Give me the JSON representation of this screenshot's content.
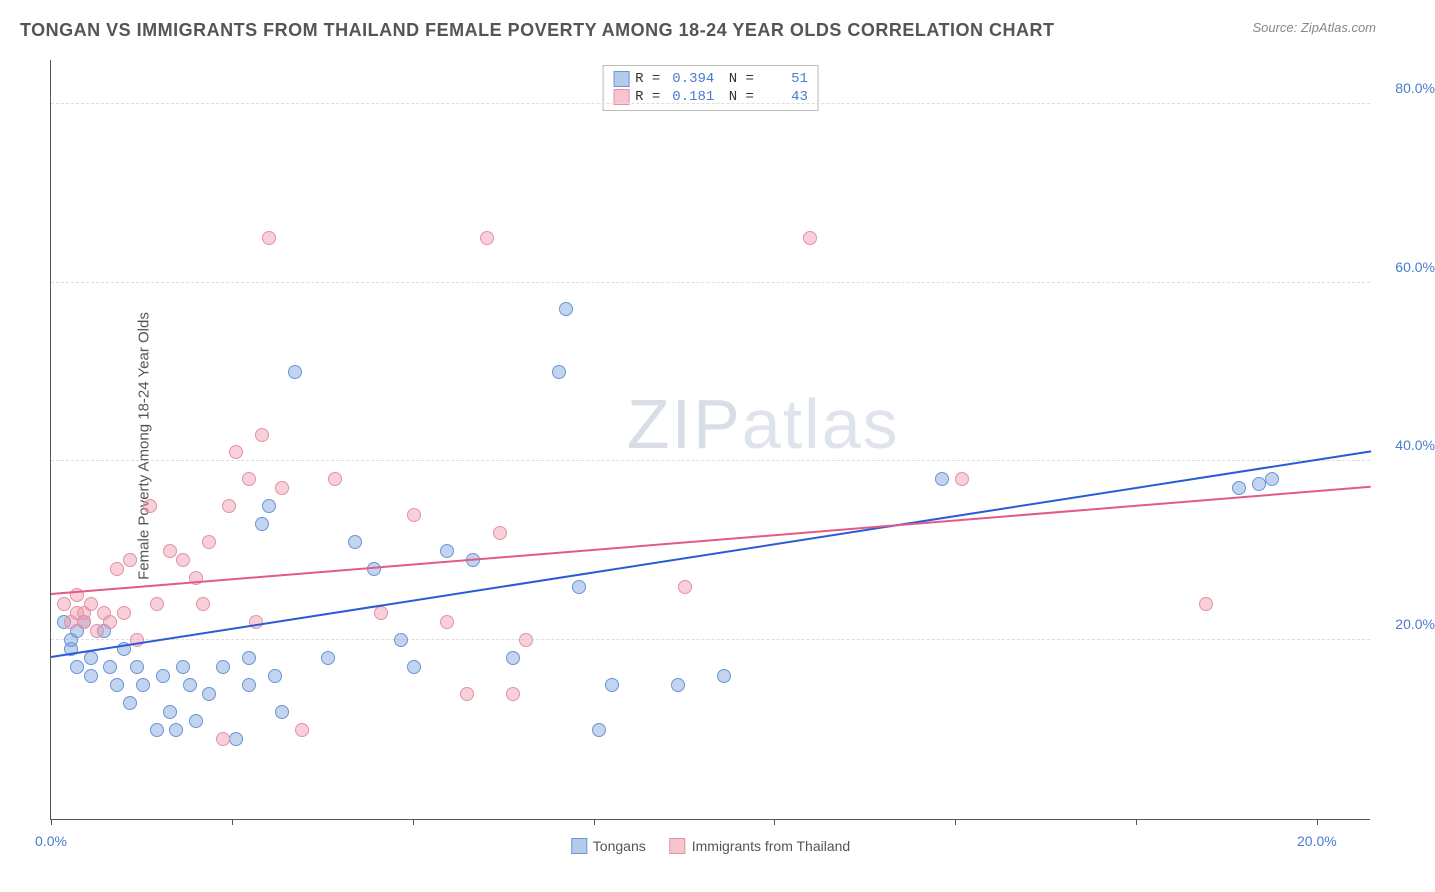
{
  "title": "TONGAN VS IMMIGRANTS FROM THAILAND FEMALE POVERTY AMONG 18-24 YEAR OLDS CORRELATION CHART",
  "source": "Source: ZipAtlas.com",
  "ylabel": "Female Poverty Among 18-24 Year Olds",
  "watermark_a": "ZIP",
  "watermark_b": "atlas",
  "chart": {
    "type": "scatter",
    "xlim": [
      0,
      20
    ],
    "ylim": [
      0,
      85
    ],
    "xticks": [
      0,
      2.74,
      5.48,
      8.22,
      10.96,
      13.7,
      16.44,
      19.18
    ],
    "xtick_labels": {
      "0": "0.0%",
      "19.18": "20.0%"
    },
    "yticks": [
      20,
      40,
      60,
      80
    ],
    "ytick_labels": [
      "20.0%",
      "40.0%",
      "60.0%",
      "80.0%"
    ],
    "grid_color": "#dddddd",
    "axis_color": "#555555",
    "background": "#ffffff",
    "series": [
      {
        "name": "Tongans",
        "fill": "rgba(120,160,220,0.45)",
        "stroke": "#6b95d4",
        "trend_color": "#2a5bd7",
        "R": "0.394",
        "N": "51",
        "trend": {
          "x1": 0,
          "y1": 18,
          "x2": 20,
          "y2": 41
        },
        "points": [
          [
            0.2,
            22
          ],
          [
            0.3,
            19
          ],
          [
            0.3,
            20
          ],
          [
            0.4,
            21
          ],
          [
            0.4,
            17
          ],
          [
            0.5,
            22
          ],
          [
            0.6,
            18
          ],
          [
            0.6,
            16
          ],
          [
            0.8,
            21
          ],
          [
            0.9,
            17
          ],
          [
            1.0,
            15
          ],
          [
            1.1,
            19
          ],
          [
            1.2,
            13
          ],
          [
            1.3,
            17
          ],
          [
            1.4,
            15
          ],
          [
            1.6,
            10
          ],
          [
            1.7,
            16
          ],
          [
            1.8,
            12
          ],
          [
            1.9,
            10
          ],
          [
            2.0,
            17
          ],
          [
            2.1,
            15
          ],
          [
            2.2,
            11
          ],
          [
            2.4,
            14
          ],
          [
            2.6,
            17
          ],
          [
            2.8,
            9
          ],
          [
            3.0,
            15
          ],
          [
            3.0,
            18
          ],
          [
            3.2,
            33
          ],
          [
            3.3,
            35
          ],
          [
            3.4,
            16
          ],
          [
            3.5,
            12
          ],
          [
            3.7,
            50
          ],
          [
            4.2,
            18
          ],
          [
            4.6,
            31
          ],
          [
            4.9,
            28
          ],
          [
            5.3,
            20
          ],
          [
            5.5,
            17
          ],
          [
            6.0,
            30
          ],
          [
            6.4,
            29
          ],
          [
            7.0,
            18
          ],
          [
            7.7,
            50
          ],
          [
            7.8,
            57
          ],
          [
            8.0,
            26
          ],
          [
            8.3,
            10
          ],
          [
            8.5,
            15
          ],
          [
            9.5,
            15
          ],
          [
            10.2,
            16
          ],
          [
            13.5,
            38
          ],
          [
            18.0,
            37
          ],
          [
            18.3,
            37.5
          ],
          [
            18.5,
            38
          ]
        ]
      },
      {
        "name": "Immigrants from Thailand",
        "fill": "rgba(240,150,170,0.45)",
        "stroke": "#e690a6",
        "trend_color": "#e05a8a",
        "R": "0.181",
        "N": "43",
        "trend": {
          "x1": 0,
          "y1": 25,
          "x2": 20,
          "y2": 37
        },
        "points": [
          [
            0.2,
            24
          ],
          [
            0.3,
            22
          ],
          [
            0.4,
            23
          ],
          [
            0.4,
            25
          ],
          [
            0.5,
            23
          ],
          [
            0.5,
            22
          ],
          [
            0.6,
            24
          ],
          [
            0.7,
            21
          ],
          [
            0.8,
            23
          ],
          [
            0.9,
            22
          ],
          [
            1.0,
            28
          ],
          [
            1.1,
            23
          ],
          [
            1.2,
            29
          ],
          [
            1.3,
            20
          ],
          [
            1.5,
            35
          ],
          [
            1.6,
            24
          ],
          [
            1.8,
            30
          ],
          [
            2.0,
            29
          ],
          [
            2.2,
            27
          ],
          [
            2.3,
            24
          ],
          [
            2.4,
            31
          ],
          [
            2.6,
            9
          ],
          [
            2.7,
            35
          ],
          [
            2.8,
            41
          ],
          [
            3.0,
            38
          ],
          [
            3.1,
            22
          ],
          [
            3.2,
            43
          ],
          [
            3.3,
            65
          ],
          [
            3.5,
            37
          ],
          [
            3.8,
            10
          ],
          [
            4.3,
            38
          ],
          [
            5.0,
            23
          ],
          [
            5.5,
            34
          ],
          [
            6.0,
            22
          ],
          [
            6.3,
            14
          ],
          [
            6.6,
            65
          ],
          [
            6.8,
            32
          ],
          [
            7.2,
            20
          ],
          [
            9.6,
            26
          ],
          [
            11.5,
            65
          ],
          [
            13.8,
            38
          ],
          [
            17.5,
            24
          ],
          [
            7.0,
            14
          ]
        ]
      }
    ],
    "legend": {
      "swatch_border_blue": "#6b95d4",
      "swatch_fill_blue": "rgba(120,160,220,0.55)",
      "swatch_border_pink": "#e690a6",
      "swatch_fill_pink": "rgba(240,150,170,0.55)"
    }
  }
}
